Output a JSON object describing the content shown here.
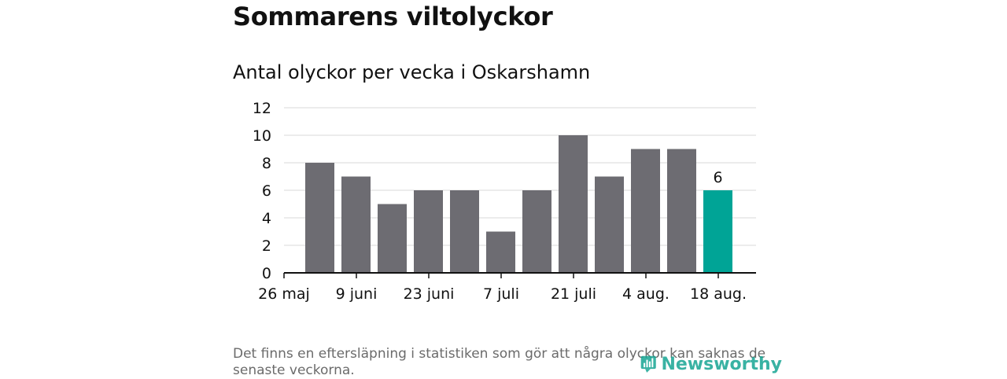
{
  "title": "Sommarens viltolyckor",
  "subtitle": "Antal olyckor per vecka i Oskarshamn",
  "footnote": "Det finns en eftersläpning i statistiken som gör att några olyckor kan saknas de senaste veckorna.",
  "logo_text": "Newsworthy",
  "colors": {
    "bar": "#6d6c72",
    "highlight": "#00a496",
    "grid": "#d9d9d9",
    "axis": "#111111",
    "logo": "#17a593"
  },
  "chart_data": {
    "type": "bar",
    "values": [
      8,
      7,
      5,
      6,
      6,
      3,
      6,
      10,
      7,
      9,
      9,
      6
    ],
    "tick_labels": [
      "26 maj",
      "9 juni",
      "23 juni",
      "7 juli",
      "21 juli",
      "4 aug.",
      "18 aug."
    ],
    "tick_positions": [
      0,
      2,
      4,
      6,
      8,
      10,
      12
    ],
    "highlight_index": 11,
    "data_labels": [
      {
        "index": 11,
        "text": "6"
      }
    ],
    "yticks": [
      0,
      2,
      4,
      6,
      8,
      10,
      12
    ],
    "ylim": [
      0,
      12
    ],
    "grid": true
  }
}
